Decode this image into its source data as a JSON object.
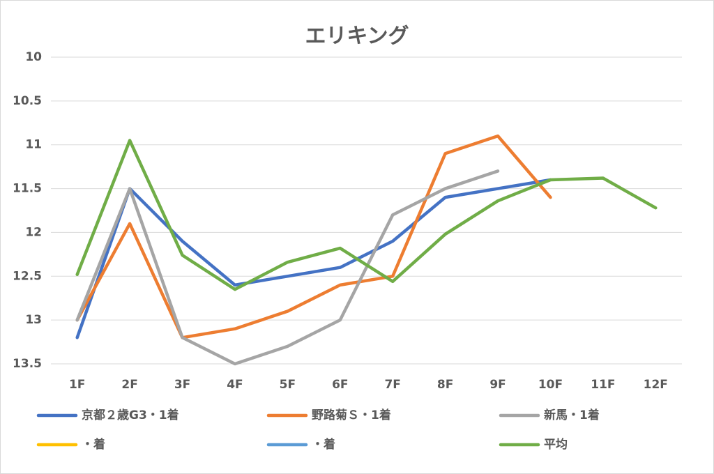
{
  "chart_data": {
    "type": "line",
    "title": "エリキング",
    "categories": [
      "1F",
      "2F",
      "3F",
      "4F",
      "5F",
      "6F",
      "7F",
      "8F",
      "9F",
      "10F",
      "11F",
      "12F"
    ],
    "ylim": [
      13.5,
      10
    ],
    "yticks": [
      10,
      10.5,
      11,
      11.5,
      12,
      12.5,
      13,
      13.5
    ],
    "grid": true,
    "series": [
      {
        "name": "京都２歳G3・1着",
        "color": "#4472c4",
        "values": [
          13.2,
          11.5,
          12.1,
          12.6,
          12.5,
          12.4,
          12.1,
          11.6,
          11.5,
          11.4,
          null,
          null
        ]
      },
      {
        "name": "野路菊Ｓ・1着",
        "color": "#ed7d31",
        "values": [
          13.0,
          11.9,
          13.2,
          13.1,
          12.9,
          12.6,
          12.5,
          11.1,
          10.9,
          11.6,
          null,
          null
        ]
      },
      {
        "name": "新馬・1着",
        "color": "#a5a5a5",
        "values": [
          13.0,
          11.5,
          13.2,
          13.5,
          13.3,
          13.0,
          11.8,
          11.5,
          11.3,
          null,
          null,
          null
        ]
      },
      {
        "name": "・着",
        "color": "#ffc000",
        "values": [
          null,
          null,
          null,
          null,
          null,
          null,
          null,
          null,
          null,
          null,
          null,
          null
        ]
      },
      {
        "name": "・着",
        "color": "#5b9bd5",
        "values": [
          null,
          null,
          null,
          null,
          null,
          null,
          null,
          null,
          null,
          null,
          null,
          null
        ]
      },
      {
        "name": "平均",
        "color": "#70ad47",
        "values": [
          12.48,
          10.95,
          12.26,
          12.65,
          12.34,
          12.18,
          12.56,
          12.02,
          11.64,
          11.4,
          11.38,
          11.72
        ]
      }
    ]
  }
}
